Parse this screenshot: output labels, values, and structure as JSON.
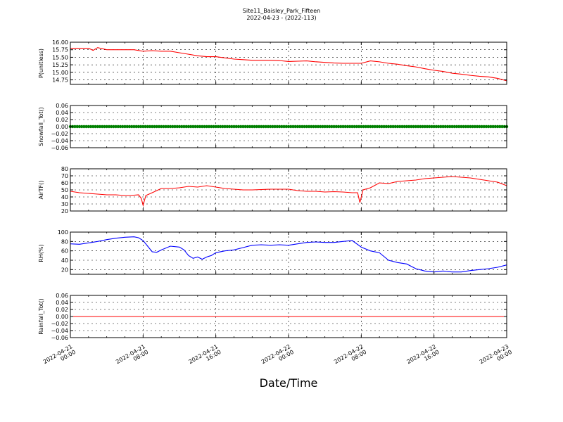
{
  "figure": {
    "title": "Site11_Baisley_Park_Fifteen",
    "subtitle": "2022-04-23 - (2022-113)",
    "xlabel": "Date/Time",
    "x_tick_labels": [
      [
        "2022-04-21",
        "00:00"
      ],
      [
        "2022-04-21",
        "08:00"
      ],
      [
        "2022-04-21",
        "16:00"
      ],
      [
        "2022-04-22",
        "00:00"
      ],
      [
        "2022-04-22",
        "08:00"
      ],
      [
        "2022-04-22",
        "16:00"
      ],
      [
        "2022-04-23",
        "00:00"
      ]
    ]
  },
  "colors": {
    "pressure": "#ff0000",
    "snowfall": "#008000",
    "airtemp": "#ff0000",
    "rh": "#0000ff",
    "rainfall": "#ff0000"
  },
  "chart_data": [
    {
      "type": "line",
      "ylabel": "P(unitless)",
      "ylim": [
        14.6,
        16.0
      ],
      "yticks": [
        "16.00",
        "15.75",
        "15.50",
        "15.25",
        "15.00",
        "14.75"
      ],
      "x_hours": [
        0,
        2,
        2.5,
        3,
        4,
        6,
        7,
        8,
        9,
        10,
        11,
        12,
        13,
        14,
        15,
        16,
        17,
        18,
        19,
        20,
        21,
        22,
        23,
        24,
        25,
        26,
        27,
        28,
        29,
        30,
        31,
        32,
        33,
        34,
        35,
        36,
        37,
        38,
        39,
        40,
        41,
        42,
        43,
        44,
        45,
        46,
        47,
        48
      ],
      "series": [
        {
          "values": [
            15.8,
            15.8,
            15.73,
            15.82,
            15.75,
            15.75,
            15.75,
            15.7,
            15.72,
            15.7,
            15.7,
            15.65,
            15.6,
            15.55,
            15.52,
            15.52,
            15.48,
            15.44,
            15.42,
            15.4,
            15.4,
            15.4,
            15.39,
            15.36,
            15.37,
            15.38,
            15.35,
            15.33,
            15.31,
            15.3,
            15.3,
            15.3,
            15.38,
            15.35,
            15.3,
            15.27,
            15.22,
            15.18,
            15.12,
            15.07,
            15.03,
            14.97,
            14.94,
            14.9,
            14.87,
            14.85,
            14.8,
            14.72
          ]
        }
      ]
    },
    {
      "type": "scatter",
      "ylabel": "Snowfall_Tot()",
      "ylim": [
        -0.06,
        0.06
      ],
      "yticks": [
        "0.06",
        "0.04",
        "0.02",
        "0.00",
        "−0.02",
        "−0.04",
        "−0.06"
      ],
      "x_range_hours": [
        0,
        48
      ],
      "step_hours": 0.25,
      "constant_value": 0.0
    },
    {
      "type": "line",
      "ylabel": "AirTF()",
      "ylim": [
        20,
        80
      ],
      "yticks": [
        "80",
        "70",
        "60",
        "50",
        "40",
        "30",
        "20"
      ],
      "x_hours": [
        0,
        1,
        2,
        3,
        4,
        5,
        6,
        6.5,
        7,
        7.5,
        7.8,
        8.0,
        8.3,
        9,
        10,
        11,
        12,
        13,
        14,
        15,
        16,
        17,
        18,
        19,
        20,
        21,
        22,
        23,
        24,
        25,
        26,
        27,
        28,
        29,
        30,
        31,
        31.6,
        31.85,
        32.2,
        33,
        34,
        35,
        36,
        37,
        38,
        39,
        40,
        41,
        42,
        43,
        44,
        45,
        46,
        47,
        48
      ],
      "series": [
        {
          "values": [
            48,
            46,
            45,
            44,
            43,
            43,
            42,
            42,
            42.5,
            43,
            38,
            28,
            42,
            46,
            52,
            52,
            53,
            55,
            54,
            56,
            54,
            52,
            51,
            50,
            50,
            50.5,
            51,
            51,
            51,
            49,
            48,
            48,
            47,
            47.5,
            47,
            46,
            46,
            32,
            50,
            53,
            60,
            59,
            62,
            63,
            64,
            66,
            67,
            68,
            69,
            68,
            67,
            65,
            63,
            61,
            56
          ]
        }
      ]
    },
    {
      "type": "line",
      "ylabel": "RH(%)",
      "ylim": [
        10,
        100
      ],
      "yticks": [
        "100",
        "80",
        "60",
        "40",
        "20"
      ],
      "x_hours": [
        0,
        1,
        2,
        3,
        4,
        5,
        6,
        7,
        7.5,
        8,
        8.5,
        9,
        9.5,
        10,
        11,
        12,
        12.5,
        13,
        13.5,
        14,
        14.5,
        15,
        15.5,
        16,
        17,
        18,
        19,
        20,
        21,
        22,
        23,
        24,
        25,
        26,
        27,
        28,
        29,
        30,
        31,
        32,
        33,
        34,
        35,
        36,
        37,
        38,
        39,
        40,
        41,
        42,
        43,
        44,
        45,
        46,
        47,
        48
      ],
      "series": [
        {
          "values": [
            75,
            74,
            77,
            80,
            84,
            87,
            89,
            90,
            88,
            82,
            70,
            58,
            57,
            62,
            70,
            68,
            62,
            50,
            44,
            47,
            42,
            47,
            50,
            56,
            60,
            62,
            67,
            72,
            73,
            72,
            73,
            72,
            75,
            78,
            79,
            78,
            78,
            80,
            82,
            68,
            60,
            56,
            40,
            35,
            32,
            22,
            17,
            15,
            17,
            15,
            15,
            18,
            20,
            22,
            25,
            30
          ]
        }
      ]
    },
    {
      "type": "line",
      "ylabel": "Rainfall_Tot()",
      "ylim": [
        -0.06,
        0.06
      ],
      "yticks": [
        "0.06",
        "0.04",
        "0.02",
        "0.00",
        "−0.02",
        "−0.04",
        "−0.06"
      ],
      "x_hours": [
        0,
        48
      ],
      "series": [
        {
          "values": [
            0.0,
            0.0
          ]
        }
      ]
    }
  ]
}
